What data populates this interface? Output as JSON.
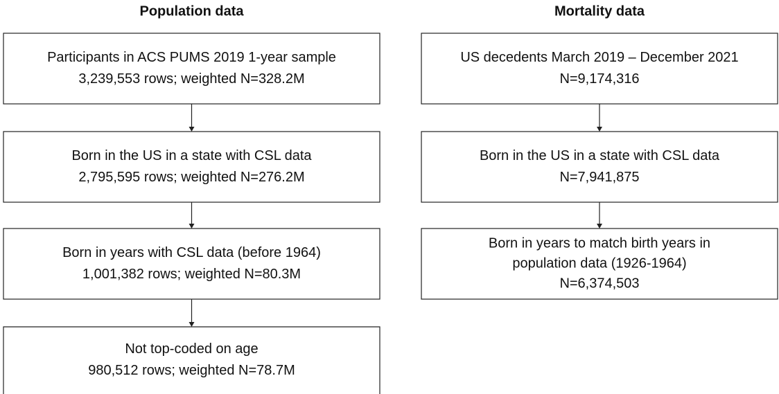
{
  "columns": [
    {
      "title": "Population data",
      "boxes": [
        {
          "lines": [
            "Participants in ACS PUMS 2019 1-year sample",
            "3,239,553 rows; weighted N=328.2M"
          ]
        },
        {
          "lines": [
            "Born in the US in a state with CSL data",
            "2,795,595 rows; weighted N=276.2M"
          ]
        },
        {
          "lines": [
            "Born in years with CSL data (before 1964)",
            "1,001,382 rows; weighted N=80.3M"
          ]
        },
        {
          "lines": [
            "Not top-coded on age",
            "980,512 rows; weighted N=78.7M"
          ]
        }
      ]
    },
    {
      "title": "Mortality data",
      "boxes": [
        {
          "lines": [
            "US decedents March 2019 – December 2021",
            "N=9,174,316"
          ]
        },
        {
          "lines": [
            "Born in the US in a state with CSL data",
            "N=7,941,875"
          ]
        },
        {
          "lines": [
            "Born in years to match birth years in",
            "population data (1926-1964)",
            "N=6,374,503"
          ]
        }
      ]
    }
  ]
}
